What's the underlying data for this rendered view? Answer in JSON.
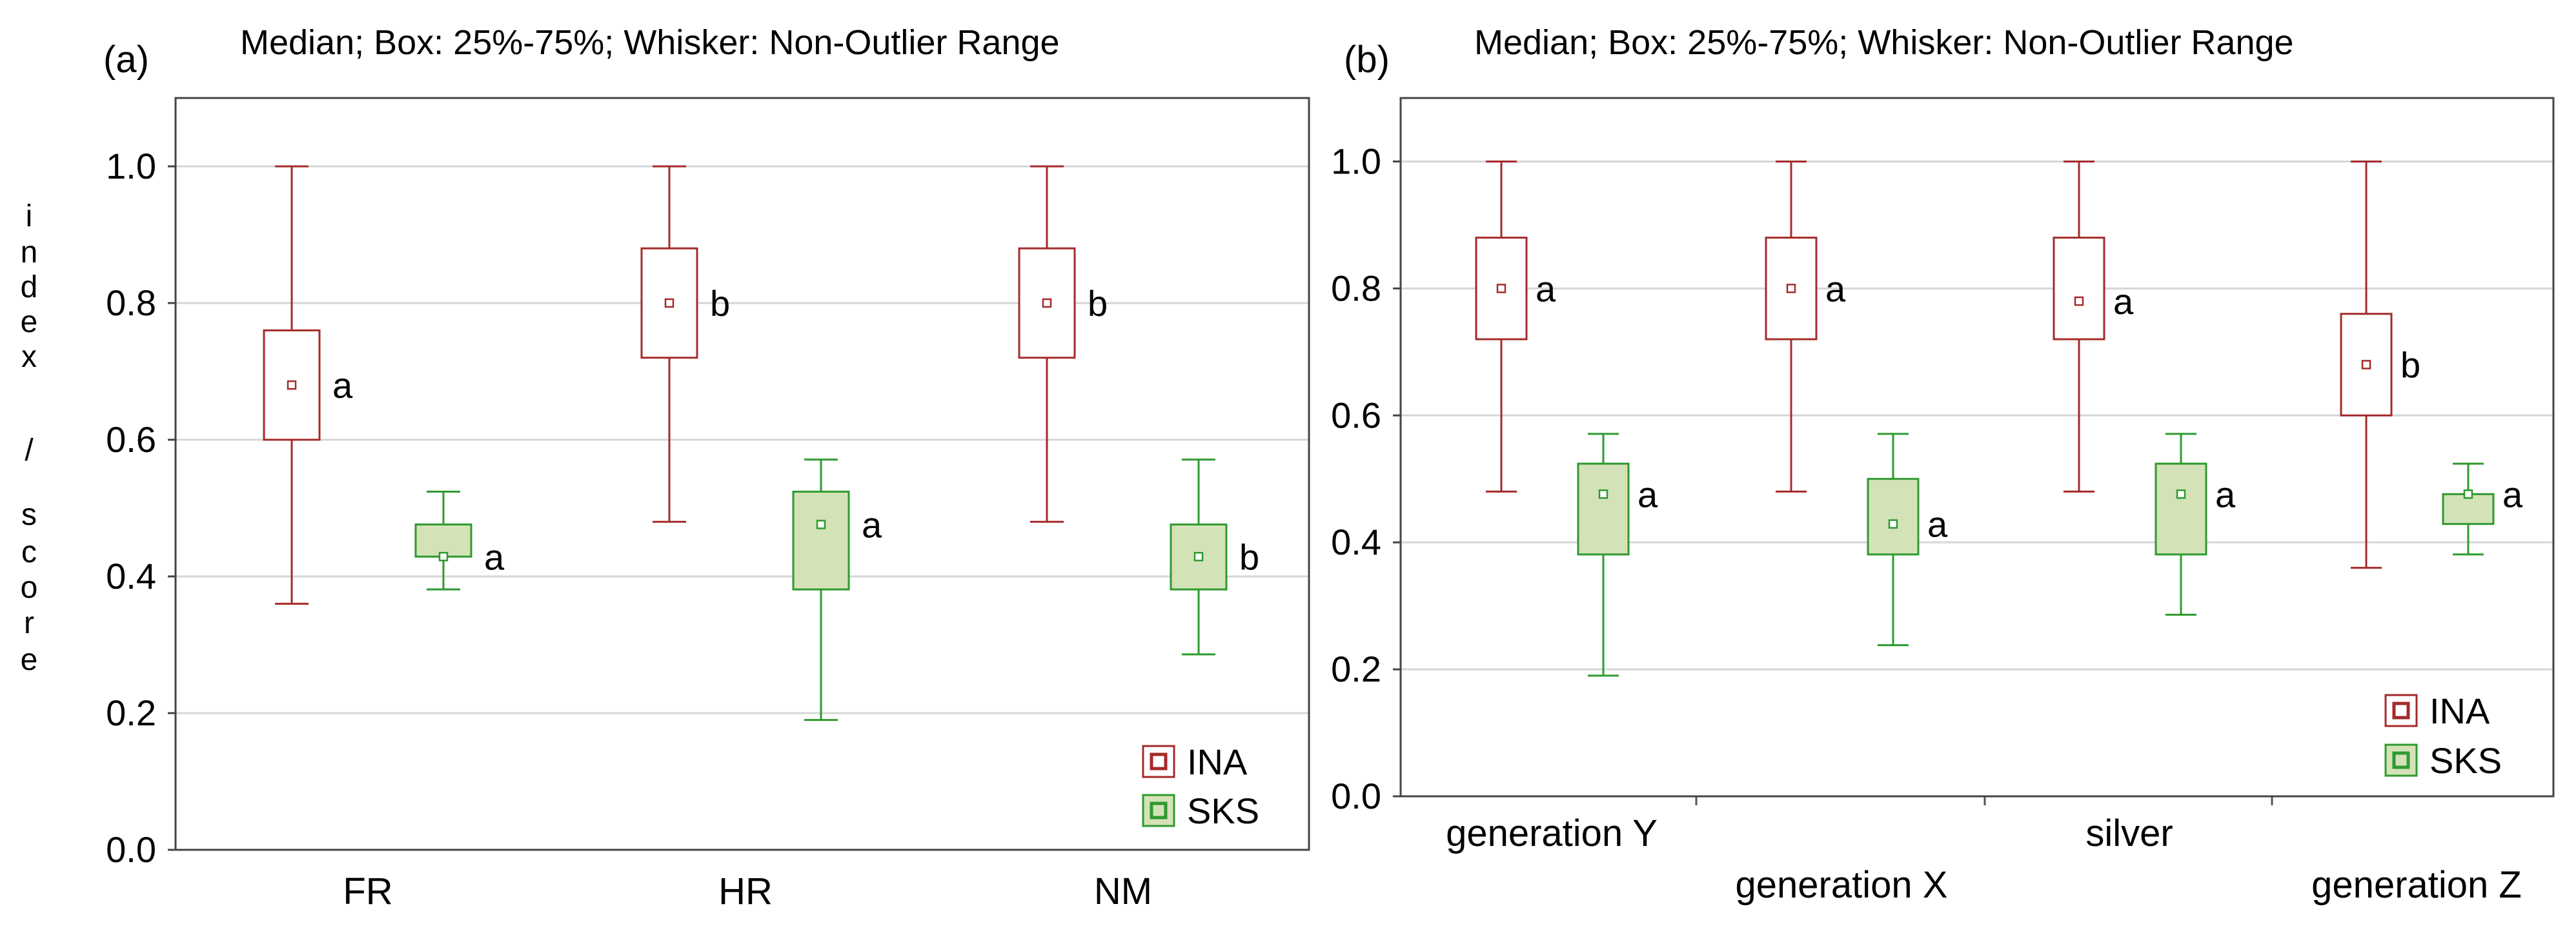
{
  "y_axis_label_letters": [
    "i",
    "n",
    "d",
    "e",
    "x",
    "/",
    "s",
    "c",
    "o",
    "r",
    "e"
  ],
  "chart_data": [
    {
      "type": "boxplot",
      "panel_label": "(a)",
      "title": "Median; Box: 25%-75%; Whisker: Non-Outlier Range",
      "ylabel": "index / score",
      "ylim": [
        0.0,
        1.1
      ],
      "yticks": [
        0.0,
        0.2,
        0.4,
        0.6,
        0.8,
        1.0
      ],
      "ytick_labels": [
        "0.0",
        "0.2",
        "0.4",
        "0.6",
        "0.8",
        "1.0"
      ],
      "grid": true,
      "legend_position": "bottom-right",
      "categories": [
        "FR",
        "HR",
        "NM"
      ],
      "series": [
        {
          "name": "INA",
          "color": "#a52a2a",
          "fill": "#ffffff",
          "boxes": [
            {
              "whisker_low": 0.36,
              "q1": 0.6,
              "median": 0.68,
              "q3": 0.76,
              "whisker_high": 1.0,
              "annotation": "a"
            },
            {
              "whisker_low": 0.48,
              "q1": 0.72,
              "median": 0.8,
              "q3": 0.88,
              "whisker_high": 1.0,
              "annotation": "b"
            },
            {
              "whisker_low": 0.48,
              "q1": 0.72,
              "median": 0.8,
              "q3": 0.88,
              "whisker_high": 1.0,
              "annotation": "b"
            }
          ]
        },
        {
          "name": "SKS",
          "color": "#2e9a2e",
          "fill": "#d4e2b8",
          "boxes": [
            {
              "whisker_low": 0.381,
              "q1": 0.429,
              "median": 0.429,
              "q3": 0.476,
              "whisker_high": 0.524,
              "annotation": "a"
            },
            {
              "whisker_low": 0.19,
              "q1": 0.381,
              "median": 0.476,
              "q3": 0.524,
              "whisker_high": 0.571,
              "annotation": "a"
            },
            {
              "whisker_low": 0.286,
              "q1": 0.381,
              "median": 0.429,
              "q3": 0.476,
              "whisker_high": 0.571,
              "annotation": "b"
            }
          ]
        }
      ]
    },
    {
      "type": "boxplot",
      "panel_label": "(b)",
      "title": "Median; Box: 25%-75%; Whisker: Non-Outlier Range",
      "ylabel": "",
      "ylim": [
        0.0,
        1.1
      ],
      "yticks": [
        0.0,
        0.2,
        0.4,
        0.6,
        0.8,
        1.0
      ],
      "ytick_labels": [
        "0.0",
        "0.2",
        "0.4",
        "0.6",
        "0.8",
        "1.0"
      ],
      "grid": true,
      "legend_position": "bottom-right",
      "categories": [
        "generation Y",
        "generation X",
        "silver",
        "generation Z"
      ],
      "series": [
        {
          "name": "INA",
          "color": "#a52a2a",
          "fill": "#ffffff",
          "boxes": [
            {
              "whisker_low": 0.48,
              "q1": 0.72,
              "median": 0.8,
              "q3": 0.88,
              "whisker_high": 1.0,
              "annotation": "a"
            },
            {
              "whisker_low": 0.48,
              "q1": 0.72,
              "median": 0.8,
              "q3": 0.88,
              "whisker_high": 1.0,
              "annotation": "a"
            },
            {
              "whisker_low": 0.48,
              "q1": 0.72,
              "median": 0.78,
              "q3": 0.88,
              "whisker_high": 1.0,
              "annotation": "a"
            },
            {
              "whisker_low": 0.36,
              "q1": 0.6,
              "median": 0.68,
              "q3": 0.76,
              "whisker_high": 1.0,
              "annotation": "b"
            }
          ]
        },
        {
          "name": "SKS",
          "color": "#2e9a2e",
          "fill": "#d4e2b8",
          "boxes": [
            {
              "whisker_low": 0.19,
              "q1": 0.381,
              "median": 0.476,
              "q3": 0.524,
              "whisker_high": 0.571,
              "annotation": "a"
            },
            {
              "whisker_low": 0.238,
              "q1": 0.381,
              "median": 0.429,
              "q3": 0.5,
              "whisker_high": 0.571,
              "annotation": "a"
            },
            {
              "whisker_low": 0.286,
              "q1": 0.381,
              "median": 0.476,
              "q3": 0.524,
              "whisker_high": 0.571,
              "annotation": "a"
            },
            {
              "whisker_low": 0.381,
              "q1": 0.429,
              "median": 0.476,
              "q3": 0.476,
              "whisker_high": 0.524,
              "annotation": "a"
            }
          ]
        }
      ]
    }
  ]
}
